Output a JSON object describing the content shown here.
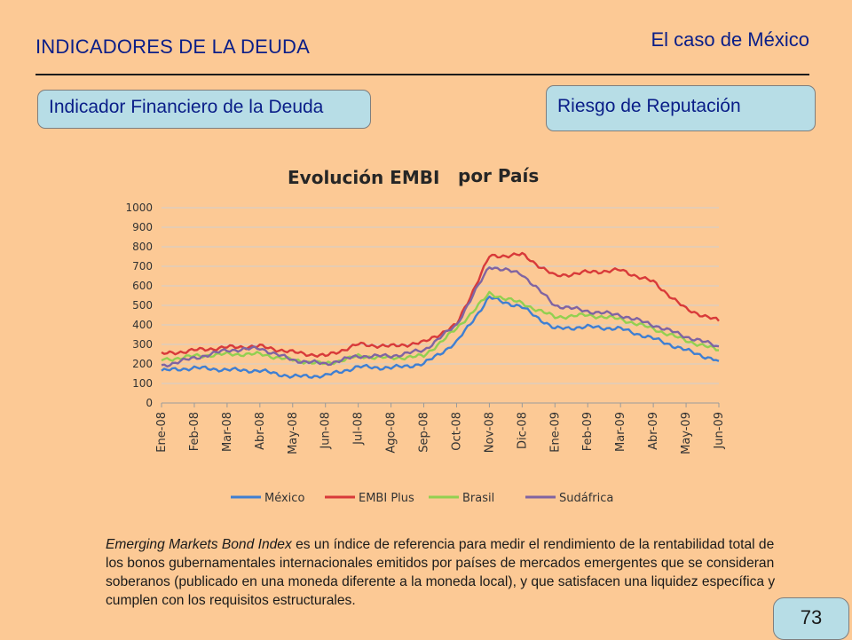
{
  "header": {
    "section_title": "INDICADORES DE LA DEUDA",
    "case_title": "El caso de México"
  },
  "boxes": {
    "left_label": "Indicador Financiero de la Deuda",
    "right_label": "Riesgo de Reputación"
  },
  "colors": {
    "background": "#fcc995",
    "box_fill": "#b7dde6",
    "title_text": "#0a1e88"
  },
  "chart_data": {
    "type": "line",
    "title": "Evolución EMBI por País",
    "title_parts": [
      "Evolución EMBI",
      "por País"
    ],
    "xlabel": "",
    "ylabel": "",
    "ylim": [
      0,
      1000
    ],
    "yticks": [
      0,
      100,
      200,
      300,
      400,
      500,
      600,
      700,
      800,
      900,
      1000
    ],
    "grid": true,
    "legend_position": "bottom",
    "x": [
      "Ene-08",
      "Feb-08",
      "Mar-08",
      "Abr-08",
      "May-08",
      "Jun-08",
      "Jul-08",
      "Ago-08",
      "Sep-08",
      "Oct-08",
      "Nov-08",
      "Dic-08",
      "Ene-09",
      "Feb-09",
      "Mar-09",
      "Abr-09",
      "May-09",
      "Jun-09"
    ],
    "series": [
      {
        "name": "México",
        "color": "#3f7fd2",
        "values": [
          165,
          180,
          170,
          165,
          135,
          140,
          185,
          180,
          200,
          310,
          540,
          490,
          380,
          390,
          380,
          330,
          270,
          215
        ]
      },
      {
        "name": "EMBI Plus",
        "color": "#d83a3a",
        "values": [
          250,
          270,
          285,
          290,
          260,
          240,
          300,
          290,
          310,
          400,
          750,
          760,
          650,
          670,
          680,
          620,
          480,
          420
        ]
      },
      {
        "name": "Brasil",
        "color": "#92d050",
        "values": [
          220,
          240,
          250,
          250,
          220,
          200,
          240,
          230,
          240,
          380,
          560,
          510,
          440,
          450,
          430,
          380,
          320,
          270
        ]
      },
      {
        "name": "Sudáfrica",
        "color": "#8064a2",
        "values": [
          190,
          230,
          270,
          280,
          220,
          200,
          240,
          240,
          270,
          400,
          700,
          660,
          500,
          470,
          450,
          400,
          340,
          290
        ]
      }
    ]
  },
  "description": {
    "italic_lead": "Emerging Markets Bond Index",
    "text": " es un índice de referencia para medir el rendimiento de la rentabilidad total de los bonos gubernamentales internacionales emitidos por países de mercados emergentes que se consideran soberanos (publicado en una moneda diferente a la moneda local), y que satisfacen una liquidez específica y cumplen con los requisitos estructurales."
  },
  "page_number": "73"
}
